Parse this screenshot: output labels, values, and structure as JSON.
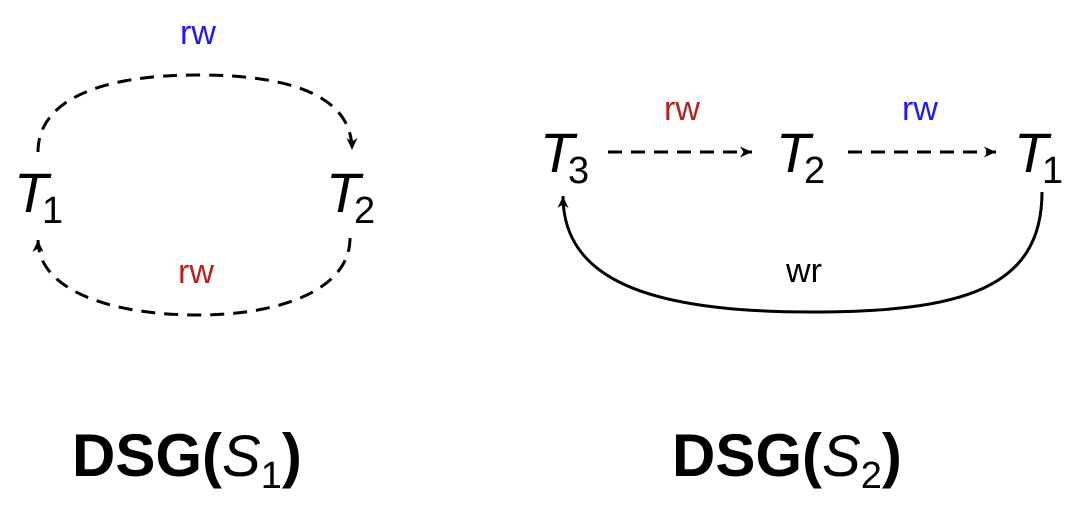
{
  "colors": {
    "rw_blue": "#1a1aff",
    "rw_red": "#b22222",
    "black": "#000000"
  },
  "graph1": {
    "nodes": [
      {
        "base": "T",
        "sub": "1"
      },
      {
        "base": "T",
        "sub": "2"
      }
    ],
    "edges": [
      {
        "from": "T1",
        "to": "T2",
        "label": "rw",
        "style": "dashed",
        "color": "blue"
      },
      {
        "from": "T2",
        "to": "T1",
        "label": "rw",
        "style": "dashed",
        "color": "red"
      }
    ],
    "caption": {
      "bold": "DSG(",
      "italic": "S",
      "sub": "1",
      "close": ")"
    }
  },
  "graph2": {
    "nodes": [
      {
        "base": "T",
        "sub": "3"
      },
      {
        "base": "T",
        "sub": "2"
      },
      {
        "base": "T",
        "sub": "1"
      }
    ],
    "edges": [
      {
        "from": "T3",
        "to": "T2",
        "label": "rw",
        "style": "dashed",
        "color": "red"
      },
      {
        "from": "T2",
        "to": "T1",
        "label": "rw",
        "style": "dashed",
        "color": "blue"
      },
      {
        "from": "T1",
        "to": "T3",
        "label": "wr",
        "style": "solid",
        "color": "black"
      }
    ],
    "caption": {
      "bold": "DSG(",
      "italic": "S",
      "sub": "2",
      "close": ")"
    }
  }
}
